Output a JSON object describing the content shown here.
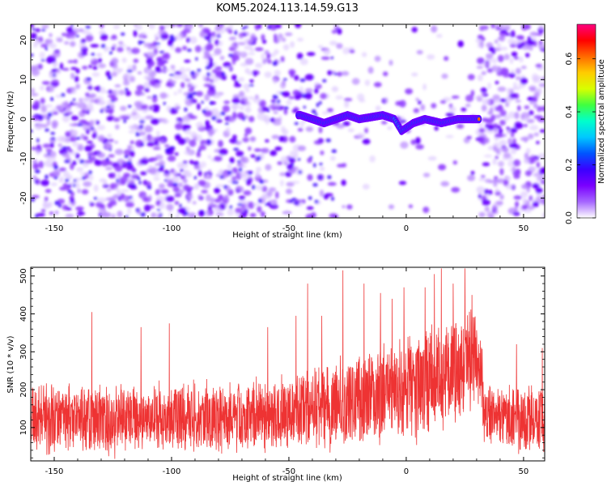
{
  "title": "KOM5.2024.113.14.59.G13",
  "colors": {
    "snr_line": "#ee3333",
    "spectrogram_hue": "#7a00ff",
    "colormap": [
      "#ffffff",
      "#a566ff",
      "#7a00ff",
      "#3a00ff",
      "#0055ff",
      "#00c8ff",
      "#00ffcc",
      "#40ff40",
      "#d8ff00",
      "#ffcc00",
      "#ff6a00",
      "#ff0000",
      "#ff0080"
    ]
  },
  "chart_data": [
    {
      "type": "heatmap",
      "panel": "spectrogram",
      "xlabel": "Height of straight line (km)",
      "ylabel": "Frequency (Hz)",
      "xlim": [
        -160,
        59
      ],
      "ylim": [
        -25,
        24
      ],
      "xticks": [
        -150,
        -100,
        -50,
        0,
        50
      ],
      "yticks": [
        -20,
        -10,
        0,
        10,
        20
      ],
      "colorbar": {
        "label": "Normalized spectral amplitude",
        "range": [
          0,
          0.73
        ],
        "ticks": [
          "0.0",
          "0.2",
          "0.4",
          "0.6"
        ],
        "placement": "right"
      },
      "ridge": {
        "description_points": [
          [
            -45,
            1
          ],
          [
            -40,
            0
          ],
          [
            -35,
            -1
          ],
          [
            -25,
            1
          ],
          [
            -20,
            0
          ],
          [
            -10,
            1
          ],
          [
            -5,
            0
          ],
          [
            -2,
            -3
          ],
          [
            3,
            -1
          ],
          [
            8,
            0
          ],
          [
            15,
            -1
          ],
          [
            22,
            0
          ],
          [
            31,
            0
          ]
        ],
        "peak_amplitude": 0.73
      },
      "grid": false
    },
    {
      "type": "line",
      "panel": "snr",
      "xlabel": "Height of straight line (km)",
      "ylabel": "SNR (10 * v/v)",
      "xlim": [
        -160,
        59
      ],
      "ylim": [
        12,
        523
      ],
      "xticks": [
        -150,
        -100,
        -50,
        0,
        50
      ],
      "yticks": [
        100,
        200,
        300,
        400,
        500
      ],
      "series": [
        {
          "envelope_x": [
            -160,
            -150,
            -140,
            -130,
            -120,
            -110,
            -100,
            -90,
            -80,
            -70,
            -60,
            -50,
            -40,
            -30,
            -20,
            -10,
            0,
            10,
            20,
            25,
            30,
            32,
            33,
            40,
            50,
            59
          ],
          "envelope_mean": [
            130,
            125,
            125,
            120,
            125,
            120,
            125,
            130,
            125,
            130,
            135,
            140,
            150,
            165,
            175,
            190,
            210,
            230,
            250,
            265,
            270,
            240,
            130,
            125,
            125,
            125
          ],
          "envelope_spread": [
            85,
            90,
            80,
            85,
            80,
            80,
            85,
            90,
            85,
            85,
            90,
            95,
            105,
            110,
            115,
            125,
            130,
            135,
            145,
            150,
            140,
            120,
            85,
            80,
            85,
            85
          ],
          "peaks": [
            [
              -134,
              405
            ],
            [
              -113,
              365
            ],
            [
              -101,
              375
            ],
            [
              -59,
              365
            ],
            [
              -47,
              395
            ],
            [
              -42,
              480
            ],
            [
              -36,
              395
            ],
            [
              -27,
              515
            ],
            [
              -18,
              480
            ],
            [
              -11,
              455
            ],
            [
              -6,
              440
            ],
            [
              -1,
              470
            ],
            [
              8,
              470
            ],
            [
              12,
              505
            ],
            [
              15,
              520
            ],
            [
              20,
              480
            ],
            [
              25,
              520
            ],
            [
              28,
              450
            ],
            [
              47,
              320
            ],
            [
              58,
              310
            ]
          ]
        }
      ],
      "grid": false
    }
  ]
}
